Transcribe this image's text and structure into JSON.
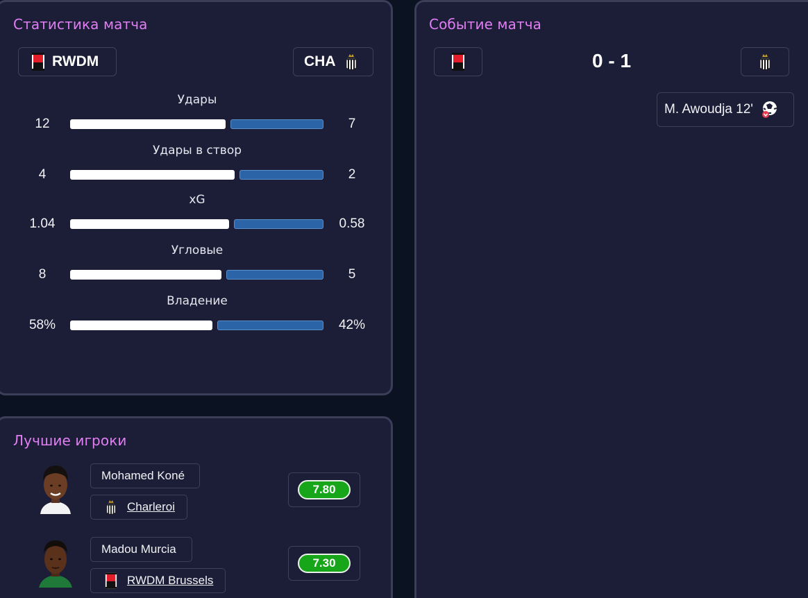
{
  "stats": {
    "title": "Статистика матча",
    "home_team": "RWDM",
    "away_team": "CHA",
    "rows": [
      {
        "label": "Удары",
        "home": "12",
        "away": "7"
      },
      {
        "label": "Удары в створ",
        "home": "4",
        "away": "2"
      },
      {
        "label": "xG",
        "home": "1.04",
        "away": "0.58"
      },
      {
        "label": "Угловые",
        "home": "8",
        "away": "5"
      },
      {
        "label": "Владение",
        "home": "58%",
        "away": "42%"
      }
    ]
  },
  "players": {
    "title": "Лучшие игроки",
    "items": [
      {
        "name": "Mohamed Koné",
        "club": "Charleroi",
        "rating": "7.80"
      },
      {
        "name": "Madou Murcia",
        "club": "RWDM Brussels",
        "rating": "7.30"
      }
    ]
  },
  "events": {
    "title": "Событие матча",
    "score": "0 - 1",
    "items": [
      {
        "text": "M. Awoudja 12'",
        "icon": "own-goal-icon"
      }
    ]
  },
  "colors": {
    "accent": "#e27ef4",
    "card_bg": "#1c1d36",
    "home_bar": "#ffffff",
    "away_bar": "#2b65a8",
    "rating_bg": "#17a51a"
  }
}
